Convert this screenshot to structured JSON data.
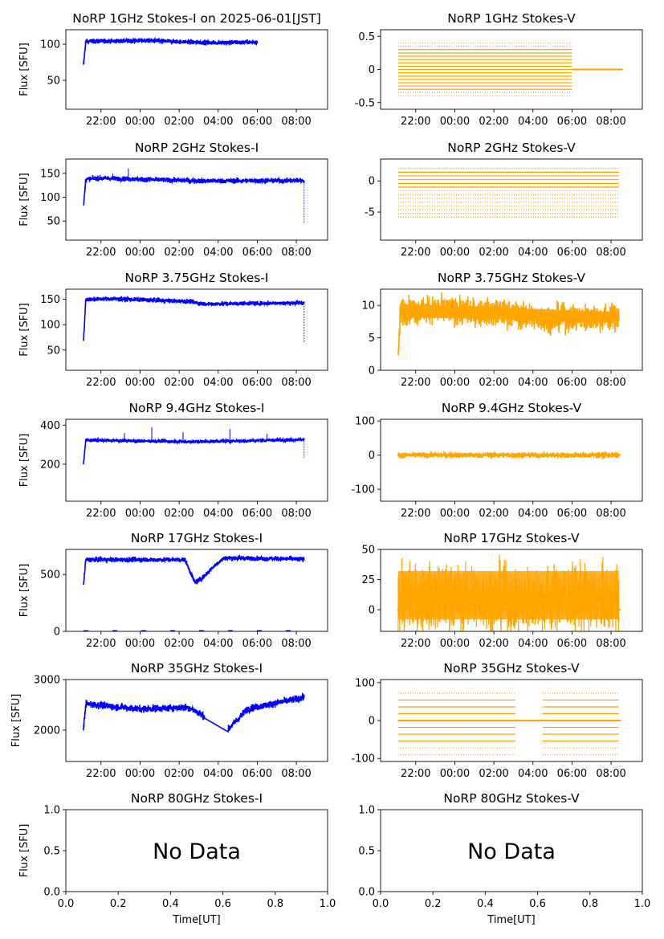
{
  "figure": {
    "ylabel": "Flux [SFU]",
    "xlabel": "Time[UT]",
    "no_data_text": "No Data"
  },
  "chart_data": [
    {
      "id": "1ghz-i",
      "title": "NoRP 1GHz Stokes-I on 2025-06-01[JST]",
      "type": "scatter",
      "color": "#0000ff",
      "ylabel": "Flux [SFU]",
      "xlim": [
        -3.8,
        9.6
      ],
      "ylim": [
        10,
        120
      ],
      "yticks": [
        50,
        100
      ],
      "xticks": [
        "22:00",
        "00:00",
        "02:00",
        "04:00",
        "06:00",
        "08:00"
      ],
      "data_range": [
        -2.9,
        6.0
      ],
      "ramp_start": 70,
      "baseline": 104,
      "noise": 1.5,
      "features": [
        {
          "t": 0.5,
          "v": 105
        },
        {
          "t": 3.5,
          "v": 102
        },
        {
          "t": 6.0,
          "v": 103
        }
      ]
    },
    {
      "id": "1ghz-v",
      "title": "NoRP 1GHz Stokes-V",
      "type": "scatter",
      "color": "#ffa500",
      "xlim": [
        -3.8,
        9.6
      ],
      "ylim": [
        -0.6,
        0.6
      ],
      "yticks": [
        -0.5,
        0.0,
        0.5
      ],
      "xticks": [
        "22:00",
        "00:00",
        "02:00",
        "04:00",
        "06:00",
        "08:00"
      ],
      "data_range": [
        -2.9,
        6.0
      ],
      "levels_range": [
        -0.4,
        0.4
      ],
      "level_step": 0.05,
      "flat_after": [
        6.0,
        8.6
      ],
      "flat_value": 0.0
    },
    {
      "id": "2ghz-i",
      "title": "NoRP 2GHz Stokes-I",
      "type": "scatter",
      "color": "#0000ff",
      "ylabel": "Flux [SFU]",
      "xlim": [
        -3.8,
        9.6
      ],
      "ylim": [
        10,
        180
      ],
      "yticks": [
        50,
        100,
        150
      ],
      "xticks": [
        "22:00",
        "00:00",
        "02:00",
        "04:00",
        "06:00",
        "08:00"
      ],
      "data_range": [
        -2.9,
        8.4
      ],
      "ramp_start": 78,
      "baseline": 138,
      "noise": 2.5,
      "features": [
        {
          "t": -2.0,
          "v": 140
        },
        {
          "t": 3.0,
          "v": 134
        },
        {
          "t": 8.3,
          "v": 135
        }
      ],
      "spikes": [
        {
          "t": -1.4,
          "v": 150
        },
        {
          "t": -0.6,
          "v": 160
        }
      ],
      "end_drop": 45
    },
    {
      "id": "2ghz-v",
      "title": "NoRP 2GHz Stokes-V",
      "type": "scatter",
      "color": "#ffa500",
      "xlim": [
        -3.8,
        9.6
      ],
      "ylim": [
        -9.5,
        3.5
      ],
      "yticks": [
        -5,
        0
      ],
      "xticks": [
        "22:00",
        "00:00",
        "02:00",
        "04:00",
        "06:00",
        "08:00"
      ],
      "data_range": [
        -2.9,
        8.4
      ],
      "levels_range": [
        -5.8,
        2.0
      ],
      "level_step": 0.6
    },
    {
      "id": "3ghz-i",
      "title": "NoRP 3.75GHz Stokes-I",
      "type": "scatter",
      "color": "#0000ff",
      "ylabel": "Flux [SFU]",
      "xlim": [
        -3.8,
        9.6
      ],
      "ylim": [
        10,
        170
      ],
      "yticks": [
        50,
        100,
        150
      ],
      "xticks": [
        "22:00",
        "00:00",
        "02:00",
        "04:00",
        "06:00",
        "08:00"
      ],
      "data_range": [
        -2.9,
        8.4
      ],
      "ramp_start": 65,
      "baseline": 150,
      "noise": 2,
      "features": [
        {
          "t": -1.5,
          "v": 151
        },
        {
          "t": 2.5,
          "v": 146
        },
        {
          "t": 3.2,
          "v": 141
        },
        {
          "t": 8.3,
          "v": 143
        }
      ],
      "end_drop": 65
    },
    {
      "id": "3ghz-v",
      "title": "NoRP 3.75GHz Stokes-V",
      "type": "scatter",
      "color": "#ffa500",
      "xlim": [
        -3.8,
        9.6
      ],
      "ylim": [
        0,
        12.5
      ],
      "yticks": [
        0,
        5,
        10
      ],
      "xticks": [
        "22:00",
        "00:00",
        "02:00",
        "04:00",
        "06:00",
        "08:00"
      ],
      "data_range": [
        -2.9,
        8.4
      ],
      "ramp_start": 2,
      "baseline": 9.2,
      "noise": 1.0,
      "features": [
        {
          "t": -1.0,
          "v": 9.3
        },
        {
          "t": 2.5,
          "v": 8.8
        },
        {
          "t": 4.5,
          "v": 8.0
        },
        {
          "t": 8.3,
          "v": 8.2
        }
      ]
    },
    {
      "id": "9ghz-i",
      "title": "NoRP 9.4GHz Stokes-I",
      "type": "scatter",
      "color": "#0000ff",
      "ylabel": "Flux [SFU]",
      "xlim": [
        -3.8,
        9.6
      ],
      "ylim": [
        10,
        430
      ],
      "yticks": [
        200,
        400
      ],
      "xticks": [
        "22:00",
        "00:00",
        "02:00",
        "04:00",
        "06:00",
        "08:00"
      ],
      "data_range": [
        -2.9,
        8.4
      ],
      "ramp_start": 200,
      "baseline": 323,
      "noise": 4,
      "features": [
        {
          "t": 2.8,
          "v": 315
        },
        {
          "t": 8.3,
          "v": 326
        }
      ],
      "spikes": [
        {
          "t": -0.8,
          "v": 360
        },
        {
          "t": 0.6,
          "v": 390
        },
        {
          "t": 2.2,
          "v": 365
        },
        {
          "t": 4.6,
          "v": 380
        },
        {
          "t": 6.5,
          "v": 355
        }
      ],
      "end_drop": 230
    },
    {
      "id": "9ghz-v",
      "title": "NoRP 9.4GHz Stokes-V",
      "type": "scatter",
      "color": "#ffa500",
      "xlim": [
        -3.8,
        9.6
      ],
      "ylim": [
        -135,
        105
      ],
      "yticks": [
        -100,
        0,
        100
      ],
      "xticks": [
        "22:00",
        "00:00",
        "02:00",
        "04:00",
        "06:00",
        "08:00"
      ],
      "data_range": [
        -2.9,
        8.4
      ],
      "baseline": 0,
      "noise": 4
    },
    {
      "id": "17ghz-i",
      "title": "NoRP 17GHz Stokes-I",
      "type": "scatter",
      "color": "#0000ff",
      "ylabel": "Flux [SFU]",
      "xlim": [
        -3.8,
        9.6
      ],
      "ylim": [
        0,
        720
      ],
      "yticks": [
        0,
        500
      ],
      "xticks": [
        "22:00",
        "00:00",
        "02:00",
        "04:00",
        "06:00",
        "08:00"
      ],
      "data_range": [
        -2.9,
        8.4
      ],
      "ramp_start": 400,
      "baseline": 630,
      "noise": 10,
      "features": [
        {
          "t": 2.3,
          "v": 630
        },
        {
          "t": 2.8,
          "v": 430
        },
        {
          "t": 3.2,
          "v": 470
        },
        {
          "t": 3.7,
          "v": 560
        },
        {
          "t": 4.3,
          "v": 645
        },
        {
          "t": 8.3,
          "v": 635
        }
      ]
    },
    {
      "id": "17ghz-v",
      "title": "NoRP 17GHz Stokes-V",
      "type": "scatter",
      "color": "#ffa500",
      "xlim": [
        -3.8,
        9.6
      ],
      "ylim": [
        -18,
        50
      ],
      "yticks": [
        0,
        25,
        50
      ],
      "xticks": [
        "22:00",
        "00:00",
        "02:00",
        "04:00",
        "06:00",
        "08:00"
      ],
      "data_range": [
        -2.9,
        8.4
      ],
      "baseline": 10,
      "noise": 13,
      "features": [
        {
          "t": 2.5,
          "v": 10
        },
        {
          "t": 3.0,
          "v": 6
        },
        {
          "t": 4.0,
          "v": 9
        }
      ]
    },
    {
      "id": "35ghz-i",
      "title": "NoRP 35GHz Stokes-I",
      "type": "scatter",
      "color": "#0000ff",
      "ylabel": "Flux [SFU]",
      "xlim": [
        -3.8,
        9.6
      ],
      "ylim": [
        1380,
        3000
      ],
      "yticks": [
        2000,
        3000
      ],
      "xticks": [
        "22:00",
        "00:00",
        "02:00",
        "04:00",
        "06:00",
        "08:00"
      ],
      "data_range": [
        -2.9,
        8.4
      ],
      "ramp_start": 2000,
      "baseline": 2520,
      "noise": 35,
      "features": [
        {
          "t": 0.0,
          "v": 2420
        },
        {
          "t": 2.5,
          "v": 2450
        },
        {
          "t": 4.5,
          "v": 2010
        },
        {
          "t": 5.5,
          "v": 2420
        },
        {
          "t": 8.3,
          "v": 2640
        }
      ],
      "gap": [
        3.3,
        4.5
      ]
    },
    {
      "id": "35ghz-v",
      "title": "NoRP 35GHz Stokes-V",
      "type": "scatter",
      "color": "#ffa500",
      "xlim": [
        -3.8,
        9.6
      ],
      "ylim": [
        -108,
        108
      ],
      "yticks": [
        -100,
        0,
        100
      ],
      "xticks": [
        "22:00",
        "00:00",
        "02:00",
        "04:00",
        "06:00",
        "08:00"
      ],
      "data_range": [
        -2.9,
        8.4
      ],
      "levels_range": [
        -90,
        88
      ],
      "level_step": 18,
      "gap": [
        3.1,
        4.5
      ],
      "flat_value": 0
    },
    {
      "id": "80ghz-i",
      "title": "NoRP 80GHz Stokes-I",
      "type": "empty",
      "ylabel": "Flux [SFU]",
      "xlabel": "Time[UT]",
      "xlim": [
        0,
        1
      ],
      "ylim": [
        0,
        1
      ],
      "yticks": [
        "0.0",
        "0.5",
        "1.0"
      ],
      "xticks": [
        "0.0",
        "0.2",
        "0.4",
        "0.6",
        "0.8",
        "1.0"
      ],
      "message": "No Data"
    },
    {
      "id": "80ghz-v",
      "title": "NoRP 80GHz Stokes-V",
      "type": "empty",
      "xlabel": "Time[UT]",
      "xlim": [
        0,
        1
      ],
      "ylim": [
        0,
        1
      ],
      "yticks": [
        "0.0",
        "0.5",
        "1.0"
      ],
      "xticks": [
        "0.0",
        "0.2",
        "0.4",
        "0.6",
        "0.8",
        "1.0"
      ],
      "message": "No Data"
    }
  ]
}
